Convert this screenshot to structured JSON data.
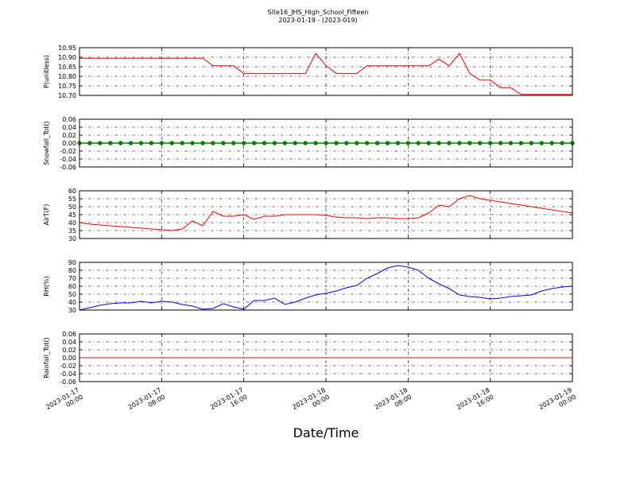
{
  "chart_data": {
    "type": "line",
    "title": "Site16_JHS_High_School_Fifteen",
    "subtitle": "2023-01-19 - (2023-019)",
    "xlabel": "Date/Time",
    "grid": true,
    "xlim": [
      "2023-01-17 00:00",
      "2023-01-19 00:00"
    ],
    "xticks": [
      {
        "value": "2023-01-17 00:00",
        "label": [
          "2023-01-17",
          "00:00"
        ]
      },
      {
        "value": "2023-01-17 08:00",
        "label": [
          "2023-01-17",
          "08:00"
        ]
      },
      {
        "value": "2023-01-17 16:00",
        "label": [
          "2023-01-17",
          "16:00"
        ]
      },
      {
        "value": "2023-01-18 00:00",
        "label": [
          "2023-01-18",
          "00:00"
        ]
      },
      {
        "value": "2023-01-18 08:00",
        "label": [
          "2023-01-18",
          "08:00"
        ]
      },
      {
        "value": "2023-01-18 16:00",
        "label": [
          "2023-01-18",
          "16:00"
        ]
      },
      {
        "value": "2023-01-19 00:00",
        "label": [
          "2023-01-19",
          "00:00"
        ]
      }
    ],
    "x": [
      "2023-01-17 00:00",
      "2023-01-17 01:00",
      "2023-01-17 02:00",
      "2023-01-17 03:00",
      "2023-01-17 04:00",
      "2023-01-17 05:00",
      "2023-01-17 06:00",
      "2023-01-17 07:00",
      "2023-01-17 08:00",
      "2023-01-17 09:00",
      "2023-01-17 10:00",
      "2023-01-17 11:00",
      "2023-01-17 12:00",
      "2023-01-17 13:00",
      "2023-01-17 14:00",
      "2023-01-17 15:00",
      "2023-01-17 16:00",
      "2023-01-17 17:00",
      "2023-01-17 18:00",
      "2023-01-17 19:00",
      "2023-01-17 20:00",
      "2023-01-17 21:00",
      "2023-01-17 22:00",
      "2023-01-17 23:00",
      "2023-01-18 00:00",
      "2023-01-18 01:00",
      "2023-01-18 02:00",
      "2023-01-18 03:00",
      "2023-01-18 04:00",
      "2023-01-18 05:00",
      "2023-01-18 06:00",
      "2023-01-18 07:00",
      "2023-01-18 08:00",
      "2023-01-18 09:00",
      "2023-01-18 10:00",
      "2023-01-18 11:00",
      "2023-01-18 12:00",
      "2023-01-18 13:00",
      "2023-01-18 14:00",
      "2023-01-18 15:00",
      "2023-01-18 16:00",
      "2023-01-18 17:00",
      "2023-01-18 18:00",
      "2023-01-18 19:00",
      "2023-01-18 20:00",
      "2023-01-18 21:00",
      "2023-01-18 22:00",
      "2023-01-18 23:00",
      "2023-01-19 00:00"
    ],
    "panels": [
      {
        "ylabel": "P(unitless)",
        "ylim": [
          10.7,
          10.95
        ],
        "yticks": [
          {
            "value": 10.7,
            "label": "10.70"
          },
          10.75,
          {
            "value": 10.8,
            "label": "10.80"
          },
          10.85,
          {
            "value": 10.9,
            "label": "10.90"
          },
          10.95
        ],
        "series": [
          {
            "color": "#ff0000",
            "values": [
              10.895,
              10.895,
              10.895,
              10.895,
              10.895,
              10.895,
              10.895,
              10.895,
              10.895,
              10.895,
              10.895,
              10.895,
              10.895,
              10.855,
              10.855,
              10.855,
              10.815,
              10.815,
              10.815,
              10.815,
              10.815,
              10.815,
              10.815,
              10.92,
              10.855,
              10.815,
              10.815,
              10.815,
              10.855,
              10.855,
              10.855,
              10.855,
              10.855,
              10.855,
              10.855,
              10.89,
              10.855,
              10.92,
              10.815,
              10.78,
              10.78,
              10.74,
              10.74,
              10.705,
              10.705,
              10.705,
              10.705,
              10.705,
              10.705
            ]
          }
        ]
      },
      {
        "ylabel": "Snowfall_Tot()",
        "ylim": [
          -0.06,
          0.06
        ],
        "yticks": [
          -0.06,
          -0.04,
          -0.02,
          {
            "value": 0,
            "label": "0.00"
          },
          0.02,
          0.04,
          0.06
        ],
        "series": [
          {
            "color": "#008000",
            "marker": "o",
            "values": [
              0,
              0,
              0,
              0,
              0,
              0,
              0,
              0,
              0,
              0,
              0,
              0,
              0,
              0,
              0,
              0,
              0,
              0,
              0,
              0,
              0,
              0,
              0,
              0,
              0,
              0,
              0,
              0,
              0,
              0,
              0,
              0,
              0,
              0,
              0,
              0,
              0,
              0,
              0,
              0,
              0,
              0,
              0,
              0,
              0,
              0,
              0,
              0,
              0
            ]
          }
        ]
      },
      {
        "ylabel": "AirT(F)",
        "ylim": [
          30,
          60
        ],
        "yticks": [
          30,
          35,
          40,
          45,
          50,
          55,
          60
        ],
        "series": [
          {
            "color": "#ff0000",
            "values": [
              40,
              39,
              38.5,
              38,
              37.5,
              37,
              36.5,
              36,
              35.5,
              35,
              36,
              41,
              38,
              47,
              44,
              44,
              45,
              42,
              44,
              44,
              45,
              45,
              45,
              45,
              44.5,
              43.5,
              43,
              43,
              42.5,
              43,
              43,
              42.5,
              42.5,
              43,
              46,
              51,
              50,
              55,
              57,
              55,
              54,
              53,
              52,
              51,
              50,
              49,
              48,
              47,
              46
            ]
          }
        ]
      },
      {
        "ylabel": "RH(%)",
        "ylim": [
          30,
          90
        ],
        "yticks": [
          30,
          40,
          50,
          60,
          70,
          80,
          90
        ],
        "series": [
          {
            "color": "#0000ff",
            "values": [
              30,
              33,
              36,
              38,
              39,
              39,
              41,
              39,
              41,
              40,
              37,
              35,
              31,
              32,
              38,
              34,
              31,
              42,
              42,
              45,
              37,
              40,
              45,
              49,
              51,
              54,
              58,
              61,
              70,
              76,
              83,
              86,
              84,
              80,
              70,
              63,
              57,
              49,
              47,
              46,
              44,
              45,
              47,
              48,
              49,
              54,
              57,
              59,
              60
            ]
          }
        ]
      },
      {
        "ylabel": "Rainfall_Tot()",
        "ylim": [
          -0.06,
          0.06
        ],
        "yticks": [
          -0.06,
          -0.04,
          -0.02,
          {
            "value": 0,
            "label": "0.00"
          },
          0.02,
          0.04,
          0.06
        ],
        "series": [
          {
            "color": "#ff0000",
            "values": [
              0,
              0,
              0,
              0,
              0,
              0,
              0,
              0,
              0,
              0,
              0,
              0,
              0,
              0,
              0,
              0,
              0,
              0,
              0,
              0,
              0,
              0,
              0,
              0,
              0,
              0,
              0,
              0,
              0,
              0,
              0,
              0,
              0,
              0,
              0,
              0,
              0,
              0,
              0,
              0,
              0,
              0,
              0,
              0,
              0,
              0,
              0,
              0,
              0
            ]
          }
        ]
      }
    ]
  }
}
